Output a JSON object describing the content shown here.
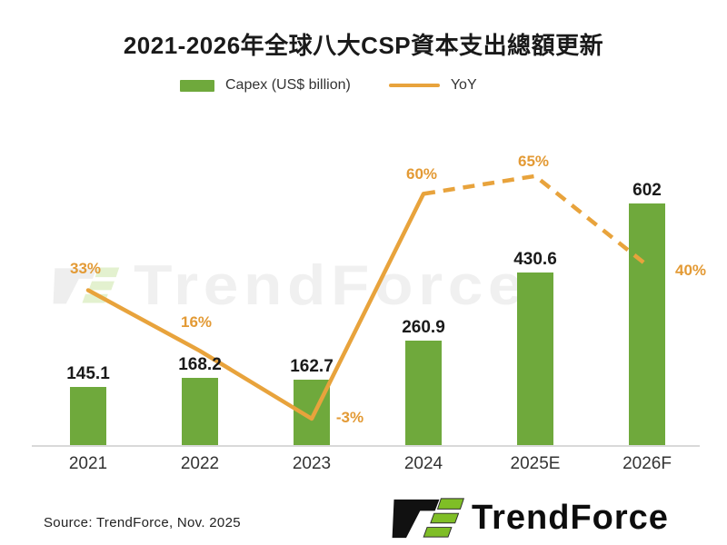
{
  "title": "2021-2026年全球八大CSP資本支出總額更新",
  "legend": {
    "capex_label": "Capex (US$ billion)",
    "yoy_label": "YoY"
  },
  "chart_data": {
    "type": "bar",
    "categories": [
      "2021",
      "2022",
      "2023",
      "2024",
      "2025E",
      "2026F"
    ],
    "series": [
      {
        "name": "Capex (US$ billion)",
        "type": "bar",
        "values": [
          145.1,
          168.2,
          162.7,
          260.9,
          430.6,
          602
        ],
        "labels": [
          "145.1",
          "168.2",
          "162.7",
          "260.9",
          "430.6",
          "602"
        ],
        "color": "#6FA93C"
      },
      {
        "name": "YoY",
        "type": "line",
        "values": [
          33,
          16,
          -3,
          60,
          65,
          40
        ],
        "labels": [
          "33%",
          "16%",
          "-3%",
          "60%",
          "65%",
          "40%"
        ],
        "color": "#E8A33C",
        "style_note": "solid through 2024, dashed from 2024 to 2026F"
      }
    ],
    "title": "2021-2026年全球八大CSP資本支出總額更新",
    "xlabel": "",
    "ylabel": "",
    "ylim": [
      0,
      650
    ],
    "grid": false,
    "legend_position": "top"
  },
  "watermark": {
    "text": "TrendForce"
  },
  "footer": {
    "source": "Source: TrendForce, Nov. 2025",
    "brand": "TrendForce"
  },
  "colors": {
    "bar": "#6FA93C",
    "line": "#E8A33C",
    "yoy_label": "#E39A35",
    "axis": "#D9D9D9",
    "brand_green": "#7FBE26",
    "brand_black": "#111111"
  }
}
